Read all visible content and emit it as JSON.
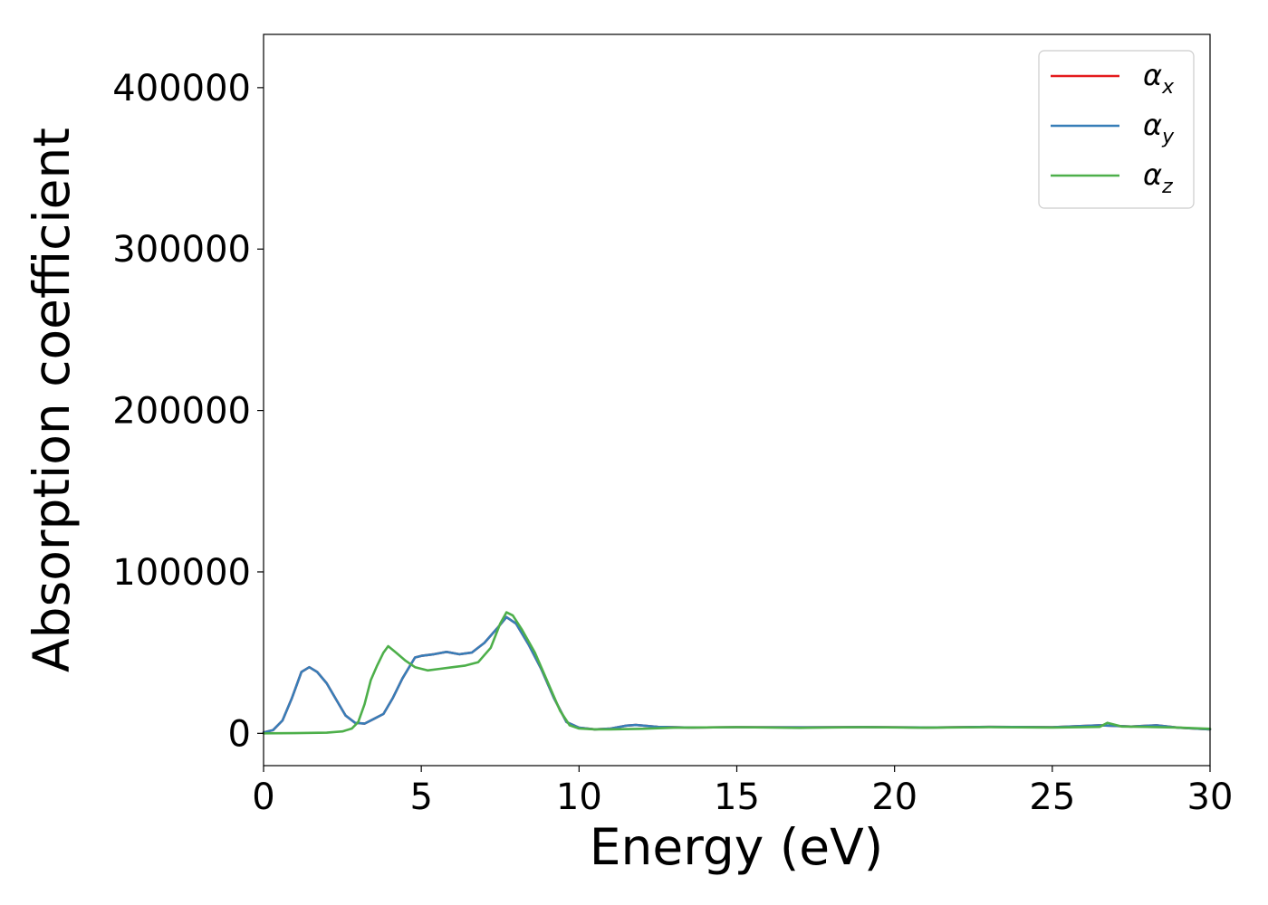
{
  "chart_data": {
    "type": "line",
    "title": "",
    "xlabel": "Energy (eV)",
    "ylabel": "Absorption coefficient",
    "xlim": [
      0,
      30
    ],
    "ylim": [
      -20000,
      433000
    ],
    "xticks": [
      "0",
      "5",
      "10",
      "15",
      "20",
      "25",
      "30"
    ],
    "yticks": [
      "0",
      "100000",
      "200000",
      "300000",
      "400000"
    ],
    "grid": false,
    "legend": {
      "placement": "top-right",
      "entries": [
        {
          "symbol": "α",
          "sub": "x",
          "color": "#e41a1c"
        },
        {
          "symbol": "α",
          "sub": "y",
          "color": "#377eb8"
        },
        {
          "symbol": "α",
          "sub": "z",
          "color": "#4daf4a"
        }
      ]
    },
    "series": [
      {
        "name": "αx",
        "color": "#e41a1c",
        "x": [
          0,
          0.3,
          0.6,
          0.9,
          1.2,
          1.45,
          1.7,
          2.0,
          2.3,
          2.6,
          2.9,
          3.2,
          3.5,
          3.8,
          4.1,
          4.4,
          4.8,
          5.0,
          5.4,
          5.8,
          6.2,
          6.6,
          7.0,
          7.4,
          7.7,
          8.0,
          8.4,
          8.8,
          9.2,
          9.6,
          10.0,
          10.5,
          11.0,
          11.5,
          11.8,
          12.5,
          13.5,
          15,
          17,
          19,
          21,
          23,
          25,
          26.5,
          27.5,
          28.3,
          29,
          30
        ],
        "y": [
          500,
          2000,
          8000,
          22000,
          38000,
          41000,
          38000,
          31000,
          21000,
          11000,
          6500,
          6000,
          9000,
          12000,
          22000,
          34000,
          47000,
          48000,
          49000,
          50500,
          49000,
          50000,
          56000,
          65000,
          72000,
          68000,
          55000,
          40000,
          22000,
          7000,
          3500,
          2500,
          3000,
          4800,
          5200,
          4000,
          3600,
          3800,
          3700,
          3900,
          3600,
          4000,
          3800,
          5000,
          4200,
          5000,
          3500,
          2500
        ]
      },
      {
        "name": "αy",
        "color": "#377eb8",
        "x": [
          0,
          0.3,
          0.6,
          0.9,
          1.2,
          1.45,
          1.7,
          2.0,
          2.3,
          2.6,
          2.9,
          3.2,
          3.5,
          3.8,
          4.1,
          4.4,
          4.8,
          5.0,
          5.4,
          5.8,
          6.2,
          6.6,
          7.0,
          7.4,
          7.7,
          8.0,
          8.4,
          8.8,
          9.2,
          9.6,
          10.0,
          10.5,
          11.0,
          11.5,
          11.8,
          12.5,
          13.5,
          15,
          17,
          19,
          21,
          23,
          25,
          26.5,
          27.5,
          28.3,
          29,
          30
        ],
        "y": [
          500,
          2000,
          8000,
          22000,
          38000,
          41000,
          38000,
          31000,
          21000,
          11000,
          6500,
          6000,
          9000,
          12000,
          22000,
          34000,
          47000,
          48000,
          49000,
          50500,
          49000,
          50000,
          56000,
          65000,
          72000,
          68000,
          55000,
          40000,
          22000,
          7000,
          3500,
          2500,
          3000,
          4800,
          5200,
          4000,
          3600,
          3800,
          3700,
          3900,
          3600,
          4000,
          3800,
          5000,
          4200,
          5000,
          3500,
          2500
        ]
      },
      {
        "name": "αz",
        "color": "#4daf4a",
        "x": [
          0,
          1.0,
          2.0,
          2.5,
          2.8,
          3.0,
          3.2,
          3.4,
          3.6,
          3.8,
          3.95,
          4.2,
          4.5,
          4.8,
          5.2,
          5.6,
          6.0,
          6.4,
          6.8,
          7.2,
          7.5,
          7.7,
          7.9,
          8.2,
          8.6,
          9.0,
          9.4,
          9.7,
          10.0,
          10.5,
          11.0,
          12.0,
          13.0,
          15,
          17,
          19,
          21,
          23,
          25,
          26.5,
          26.75,
          27.2,
          28,
          29,
          30
        ],
        "y": [
          0,
          100,
          400,
          1200,
          3000,
          7000,
          18000,
          33000,
          42000,
          50000,
          54000,
          50000,
          45000,
          41000,
          39000,
          40000,
          41000,
          42000,
          44000,
          53000,
          68000,
          75000,
          73000,
          64000,
          50000,
          32000,
          14000,
          5000,
          3000,
          2500,
          2500,
          2800,
          3500,
          3800,
          3400,
          3800,
          3500,
          3800,
          3600,
          4000,
          6500,
          4200,
          4000,
          3600,
          2800
        ]
      }
    ]
  }
}
